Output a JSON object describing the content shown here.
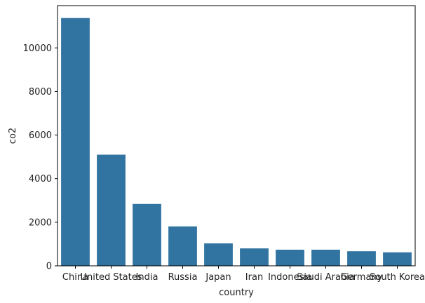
{
  "chart_data": {
    "type": "bar",
    "categories": [
      "China",
      "United States",
      "India",
      "Russia",
      "Japan",
      "Iran",
      "Indonesia",
      "Saudi Arabia",
      "Germany",
      "South Korea"
    ],
    "values": [
      11370,
      5100,
      2840,
      1810,
      1030,
      800,
      740,
      740,
      670,
      620
    ],
    "title": "",
    "xlabel": "country",
    "ylabel": "co2",
    "ylim": [
      0,
      11940
    ],
    "yticks": [
      0,
      2000,
      4000,
      6000,
      8000,
      10000
    ],
    "grid": false,
    "colors": {
      "bar": "#3274a1"
    }
  }
}
